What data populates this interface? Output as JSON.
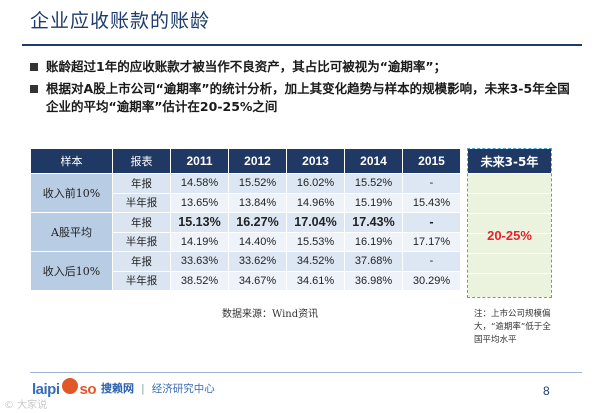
{
  "slide": {
    "title": "企业应收账款的账龄",
    "bullets": [
      "账龄超过1年的应收账款才被当作不良资产，其占比可被视为“逾期率”；",
      "根据对A股上市公司“逾期率”的统计分析，加上其变化趋势与样本的规模影响，未来3-5年全国企业的平均“逾期率”估计在20-25%之间"
    ],
    "page_number": "8",
    "watermark": "© 大家说"
  },
  "table": {
    "headers": [
      "样本",
      "报表",
      "2011",
      "2012",
      "2013",
      "2014",
      "2015"
    ],
    "groups": [
      {
        "label": "收入前10%",
        "rows": [
          {
            "type": "年报",
            "values": [
              "14.58%",
              "15.52%",
              "16.02%",
              "15.52%",
              "-"
            ]
          },
          {
            "type": "半年报",
            "values": [
              "13.65%",
              "13.84%",
              "14.96%",
              "15.19%",
              "15.43%"
            ]
          }
        ]
      },
      {
        "label": "A股平均",
        "rows": [
          {
            "type": "年报",
            "values": [
              "15.13%",
              "16.27%",
              "17.04%",
              "17.43%",
              "-"
            ]
          },
          {
            "type": "半年报",
            "values": [
              "14.19%",
              "14.40%",
              "15.53%",
              "16.19%",
              "17.17%"
            ]
          }
        ]
      },
      {
        "label": "收入后10%",
        "rows": [
          {
            "type": "年报",
            "values": [
              "33.63%",
              "33.62%",
              "34.52%",
              "37.68%",
              "-"
            ]
          },
          {
            "type": "半年报",
            "values": [
              "38.52%",
              "34.67%",
              "34.61%",
              "36.98%",
              "30.29%"
            ]
          }
        ]
      }
    ],
    "future": {
      "header": "未来3-5年",
      "value": "20-25%"
    }
  },
  "source": "数据来源：Wind资讯",
  "note": "注：上市公司规模偏大，“逾期率”低于全国平均水平",
  "footer": {
    "logo_part1": "laipi",
    "logo_part2": "so",
    "brand": "搜赖网",
    "separator": "|",
    "subtitle": "经济研究中心"
  },
  "colors": {
    "header_navy": "#1f3864",
    "group_cell": "#b8cce4",
    "future_border": "#41a6d8",
    "future_fill": "#ebf3df",
    "highlight_red": "#e8222b"
  }
}
